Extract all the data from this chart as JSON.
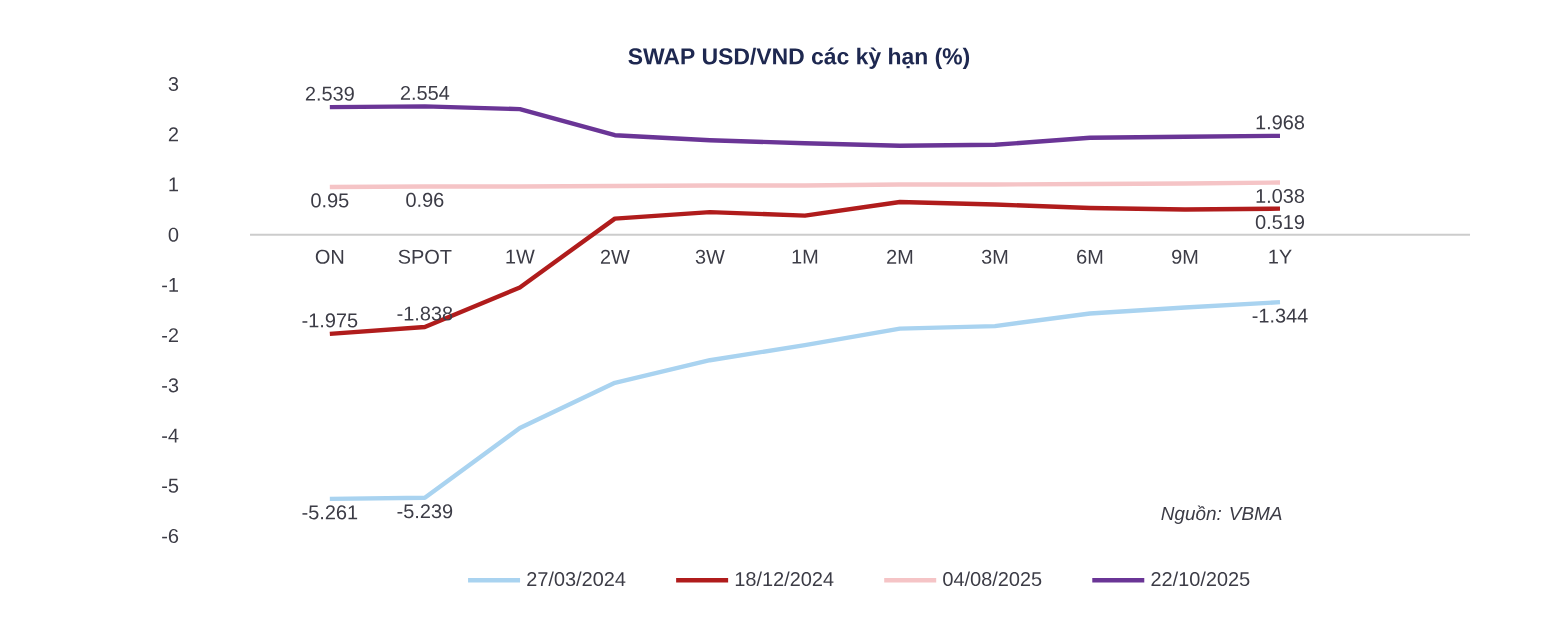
{
  "chart_data": {
    "type": "line",
    "title": "SWAP USD/VND các kỳ hạn (%)",
    "categories": [
      "ON",
      "SPOT",
      "1W",
      "2W",
      "3W",
      "1M",
      "2M",
      "3M",
      "6M",
      "9M",
      "1Y"
    ],
    "series": [
      {
        "name": "27/03/2024",
        "color": "#a9d3f0",
        "values": [
          -5.261,
          -5.239,
          -3.85,
          -2.95,
          -2.5,
          -2.2,
          -1.87,
          -1.82,
          -1.57,
          -1.45,
          -1.344
        ],
        "value_labels": [
          "-5.261",
          "-5.239",
          null,
          null,
          null,
          null,
          null,
          null,
          null,
          null,
          "-1.344"
        ]
      },
      {
        "name": "18/12/2024",
        "color": "#b01c1c",
        "values": [
          -1.975,
          -1.838,
          -1.05,
          0.32,
          0.45,
          0.38,
          0.65,
          0.6,
          0.53,
          0.5,
          0.519
        ],
        "value_labels": [
          "-1.975",
          "-1.838",
          null,
          null,
          null,
          null,
          null,
          null,
          null,
          null,
          "0.519"
        ]
      },
      {
        "name": "04/08/2025",
        "color": "#f5c4c6",
        "values": [
          0.95,
          0.96,
          0.96,
          0.97,
          0.98,
          0.98,
          1.0,
          1.0,
          1.01,
          1.02,
          1.038
        ],
        "value_labels": [
          "0.95",
          "0.96",
          null,
          null,
          null,
          null,
          null,
          null,
          null,
          null,
          "1.038"
        ]
      },
      {
        "name": "22/10/2025",
        "color": "#6a3596",
        "values": [
          2.539,
          2.554,
          2.5,
          1.98,
          1.88,
          1.82,
          1.77,
          1.79,
          1.93,
          1.95,
          1.968
        ],
        "value_labels": [
          "2.539",
          "2.554",
          null,
          null,
          null,
          null,
          null,
          null,
          null,
          null,
          "1.968"
        ]
      }
    ],
    "ylim": [
      -6,
      3
    ],
    "yticks": [
      -6,
      -5,
      -4,
      -3,
      -2,
      -1,
      0,
      1,
      2,
      3
    ],
    "grid": false,
    "legend": "bottom",
    "marker": "none",
    "line_style": "solid",
    "annotations": [
      "Nguồn: VBMA"
    ]
  }
}
